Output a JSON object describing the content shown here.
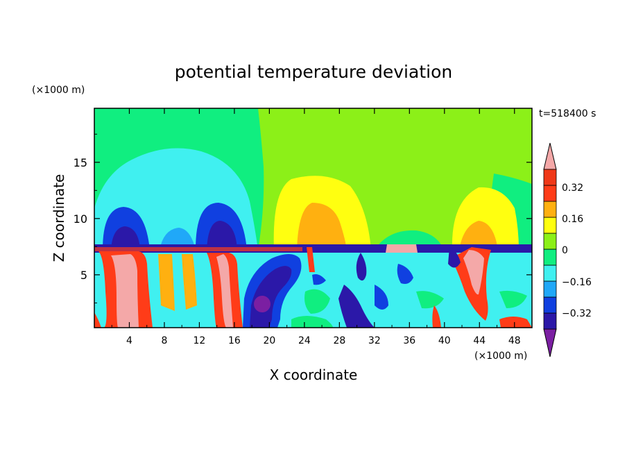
{
  "chart_data": {
    "type": "heatmap",
    "title": "potential temperature deviation",
    "xlabel": "X coordinate",
    "ylabel": "Z coordinate",
    "x_unit": "(×1000 m)",
    "y_unit": "(×1000 m)",
    "time_label": "t=518400 s",
    "xlim": [
      0,
      50
    ],
    "ylim": [
      0.3,
      19.8
    ],
    "x_ticks": [
      4,
      8,
      12,
      16,
      20,
      24,
      28,
      32,
      36,
      40,
      44,
      48
    ],
    "y_ticks": [
      5,
      10,
      15
    ],
    "colorbar": {
      "levels": [
        -0.4,
        -0.32,
        -0.24,
        -0.16,
        -0.08,
        0,
        0.08,
        0.16,
        0.24,
        0.32,
        0.4
      ],
      "tick_labels": [
        "0.32",
        "0.16",
        "0",
        "−0.16",
        "−0.32"
      ],
      "colors": [
        "#7b1fa2",
        "#2b18a8",
        "#1040e0",
        "#20a8f8",
        "#40f0f0",
        "#10ee80",
        "#8cf018",
        "#ffff10",
        "#ffb010",
        "#ff3c18",
        "#f03818",
        "#f4a8a8"
      ]
    }
  }
}
